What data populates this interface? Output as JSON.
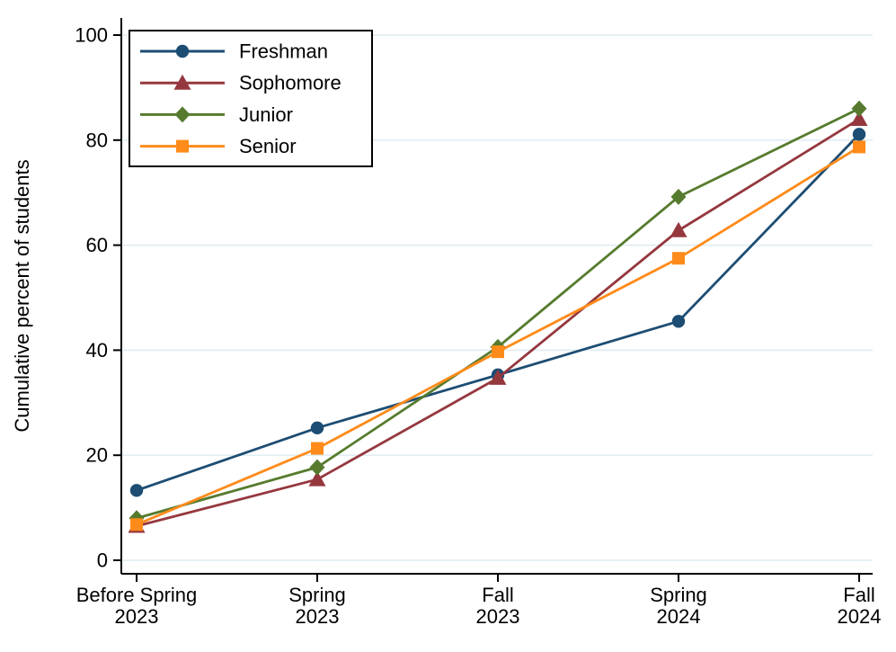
{
  "chart_data": {
    "type": "line",
    "title": "",
    "xlabel": "",
    "ylabel": "Cumulative percent of students",
    "categories": [
      [
        "Before Spring",
        "2023"
      ],
      [
        "Spring",
        "2023"
      ],
      [
        "Fall",
        "2023"
      ],
      [
        "Spring",
        "2024"
      ],
      [
        "Fall",
        "2024"
      ]
    ],
    "y_ticks": [
      0,
      20,
      40,
      60,
      80,
      100
    ],
    "ylim": [
      0,
      100
    ],
    "grid": "horizontal-only",
    "legend_position": "top-left-inside",
    "series": [
      {
        "name": "Freshman",
        "marker": "circle",
        "color": "#1d4d73",
        "values": [
          13.3,
          25.2,
          35.3,
          45.5,
          81.1
        ]
      },
      {
        "name": "Sophomore",
        "marker": "triangle",
        "color": "#95383e",
        "values": [
          6.5,
          15.4,
          34.7,
          62.8,
          84.0
        ]
      },
      {
        "name": "Junior",
        "marker": "diamond",
        "color": "#567b2e",
        "values": [
          8.0,
          17.7,
          40.6,
          69.2,
          86.0
        ]
      },
      {
        "name": "Senior",
        "marker": "square",
        "color": "#ff8b1a",
        "values": [
          6.8,
          21.3,
          39.7,
          57.5,
          78.7
        ]
      }
    ],
    "colors": {
      "background": "#ffffff",
      "axis": "#000000",
      "gridline": "#e2eef2",
      "text": "#000000",
      "legend_border": "#000000",
      "legend_background": "#ffffff"
    }
  }
}
